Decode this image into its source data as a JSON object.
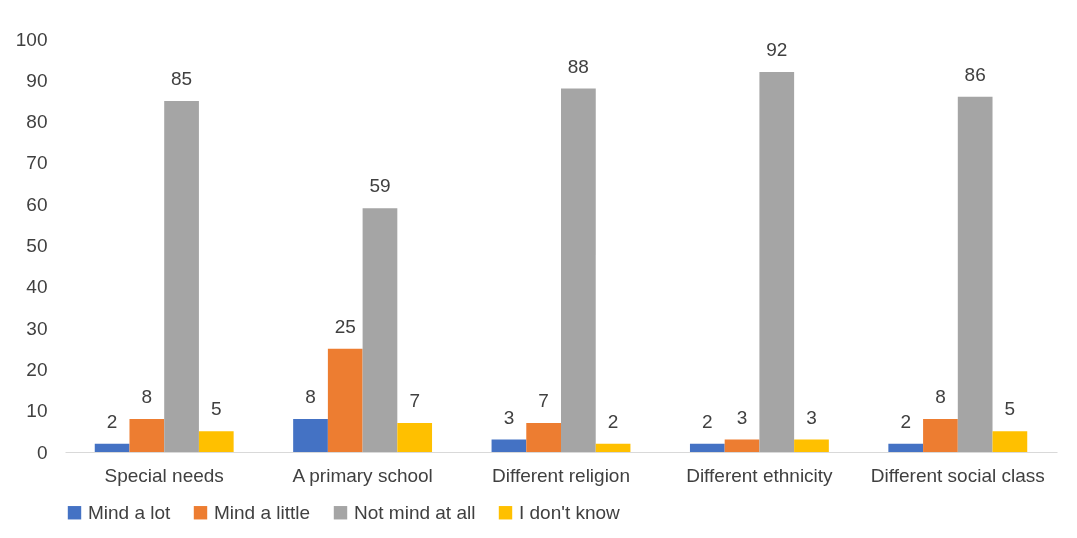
{
  "chart_data": {
    "type": "bar",
    "categories": [
      "Special needs",
      "A primary school",
      "Different religion",
      "Different ethnicity",
      "Different social class"
    ],
    "series": [
      {
        "name": "Mind a lot",
        "color": "#4472c4",
        "values": [
          2,
          8,
          3,
          2,
          2
        ]
      },
      {
        "name": "Mind a little",
        "color": "#ed7d31",
        "values": [
          8,
          25,
          7,
          3,
          8
        ]
      },
      {
        "name": "Not mind at all",
        "color": "#a5a5a5",
        "values": [
          85,
          59,
          88,
          92,
          86
        ]
      },
      {
        "name": "I don't know",
        "color": "#ffc000",
        "values": [
          5,
          7,
          2,
          3,
          5
        ]
      }
    ],
    "ylim": [
      0,
      100
    ],
    "yticks": [
      0,
      10,
      20,
      30,
      40,
      50,
      60,
      70,
      80,
      90,
      100
    ],
    "data_labels": true,
    "grid": false,
    "legend": "bottom"
  }
}
